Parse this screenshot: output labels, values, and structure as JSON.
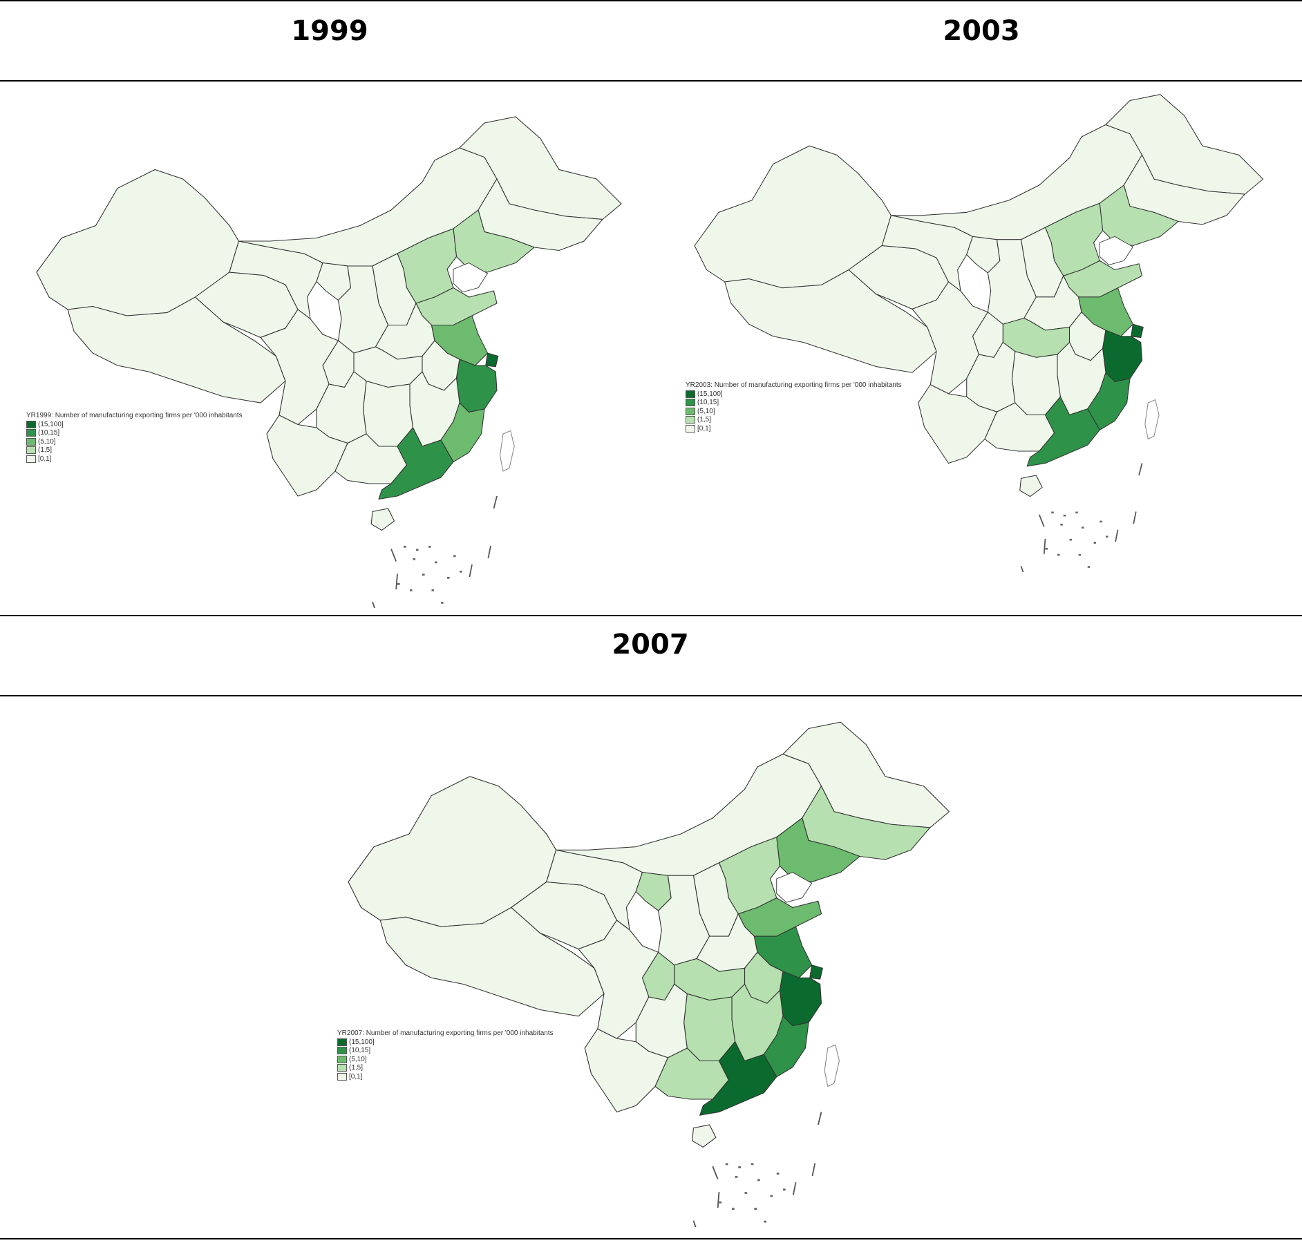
{
  "panels": [
    {
      "year": "1999",
      "legend_title": "YR1999: Number of manufacturing exporting firms per '000 inhabitants"
    },
    {
      "year": "2003",
      "legend_title": "YR2003: Number of manufacturing exporting firms per '000 inhabitants"
    },
    {
      "year": "2007",
      "legend_title": "YR2007: Number of manufacturing exporting firms per '000 inhabitants"
    }
  ],
  "legend_classes": [
    {
      "label": "(15,100]",
      "color": "#0b6b2e"
    },
    {
      "label": "(10,15]",
      "color": "#2e9249"
    },
    {
      "label": "(5,10]",
      "color": "#6dbb6f"
    },
    {
      "label": "(1,5]",
      "color": "#b6e0b0"
    },
    {
      "label": "[0,1]",
      "color": "#eef7ea"
    }
  ],
  "colors": {
    "border": "#333333",
    "rule": "#000000"
  }
}
